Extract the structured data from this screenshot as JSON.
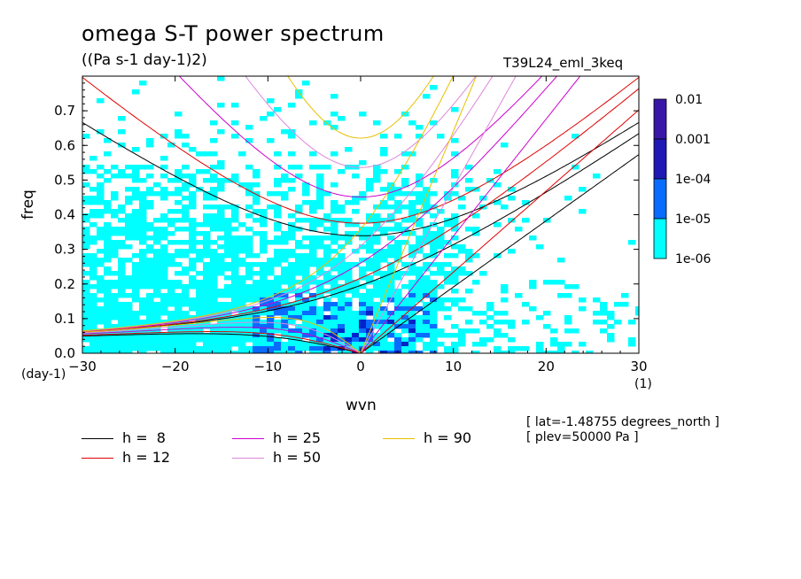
{
  "title": "omega S-T power spectrum",
  "subtitle": "((Pa s-1 day-1)2)",
  "run_id": "T39L24_eml_3keq",
  "notes": [
    "[ lat=-1.48755 degrees_north ]",
    "[ plev=50000 Pa ]"
  ],
  "chart_data": {
    "type": "heatmap",
    "xlabel": "wvn",
    "ylabel": "freq",
    "x_unit": "(1)",
    "y_unit": "(day-1)",
    "xlim": [
      -30,
      30
    ],
    "ylim": [
      0,
      0.8
    ],
    "x_ticks": [
      -30,
      -20,
      -10,
      0,
      10,
      20,
      30
    ],
    "y_ticks": [
      0.0,
      0.1,
      0.2,
      0.3,
      0.4,
      0.5,
      0.6,
      0.7
    ],
    "y_tick_labels": [
      "0.0",
      "0.1",
      "0.2",
      "0.3",
      "0.4",
      "0.5",
      "0.6",
      "0.7"
    ],
    "colorbar": {
      "levels": [
        "1e-06",
        "1e-05",
        "1e-04",
        "0.001",
        "0.01"
      ],
      "colors": [
        "#00ffff",
        "#0a6bff",
        "#0024c8",
        "#1f18b5",
        "#3a16a8"
      ]
    },
    "dispersion_curves": [
      {
        "h": 8,
        "label": "h =  8",
        "color": "#000000"
      },
      {
        "h": 12,
        "label": "h = 12",
        "color": "#e00000"
      },
      {
        "h": 25,
        "label": "h = 25",
        "color": "#cc00cc"
      },
      {
        "h": 50,
        "label": "h = 50",
        "color": "#dd88dd"
      },
      {
        "h": 90,
        "label": "h = 90",
        "color": "#e8c000"
      }
    ]
  }
}
